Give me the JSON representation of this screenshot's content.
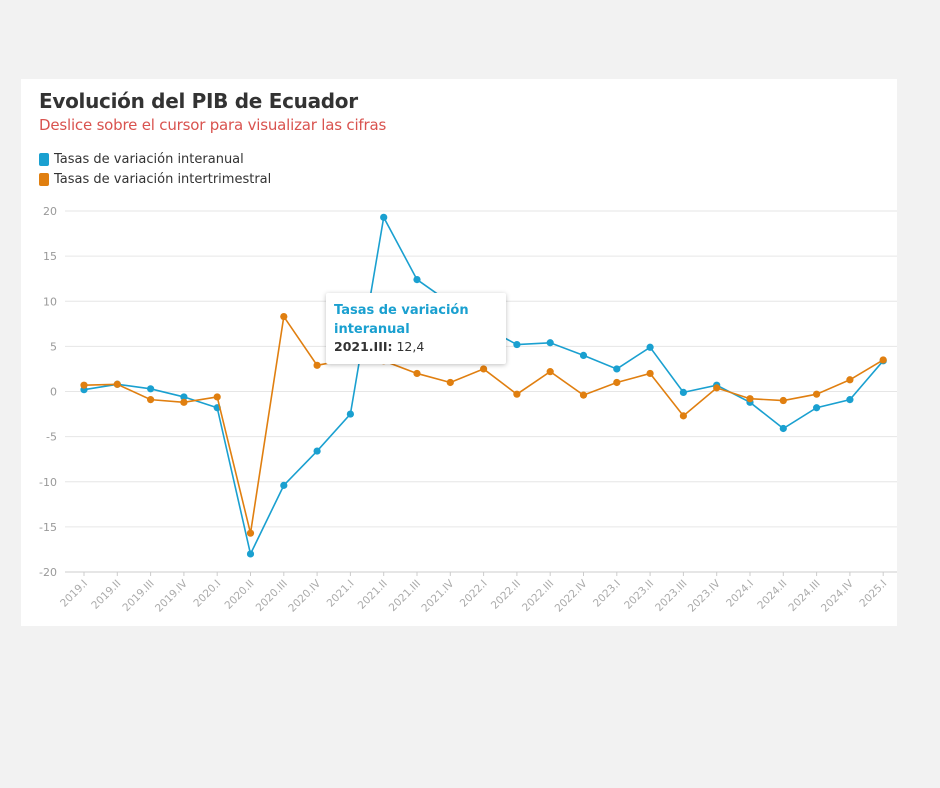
{
  "chart_data": {
    "type": "line",
    "title": "Evolución del PIB de Ecuador",
    "subtitle": "Deslice sobre el cursor para visualizar las cifras",
    "categories": [
      "2019.I",
      "2019.II",
      "2019.III",
      "2019.IV",
      "2020.I",
      "2020.II",
      "2020.III",
      "2020.IV",
      "2021.I",
      "2021.II",
      "2021.III",
      "2021.IV",
      "2022.I",
      "2022.II",
      "2022.III",
      "2022.IV",
      "2023.I",
      "2023.II",
      "2023.III",
      "2023.IV",
      "2024.I",
      "2024.II",
      "2024.III",
      "2024.IV",
      "2025.I"
    ],
    "series": [
      {
        "name": "Tasas de variación interanual",
        "color": "#1aa0d0",
        "values": [
          0.2,
          0.8,
          0.3,
          -0.6,
          -1.8,
          -18.0,
          -10.4,
          -6.6,
          -2.5,
          19.3,
          12.4,
          9.8,
          7.2,
          5.2,
          5.4,
          4.0,
          2.5,
          4.9,
          -0.1,
          0.7,
          -1.2,
          -4.1,
          -1.8,
          -0.9,
          3.4
        ]
      },
      {
        "name": "Tasas de variación intertrimestral",
        "color": "#e07f10",
        "values": [
          0.7,
          0.8,
          -0.9,
          -1.2,
          -0.6,
          -15.7,
          8.3,
          2.9,
          3.6,
          3.4,
          2.0,
          1.0,
          2.5,
          -0.3,
          2.2,
          -0.4,
          1.0,
          2.0,
          -2.7,
          0.4,
          -0.8,
          -1.0,
          -0.3,
          1.3,
          3.5
        ]
      }
    ],
    "ylim": [
      -20,
      20
    ],
    "yticks": [
      -20,
      -15,
      -10,
      -5,
      0,
      5,
      10,
      15,
      20
    ],
    "grid": true,
    "legend": "top-left"
  },
  "tooltip": {
    "series": "Tasas de variación interanual",
    "category": "2021.III:",
    "value": "12,4"
  }
}
